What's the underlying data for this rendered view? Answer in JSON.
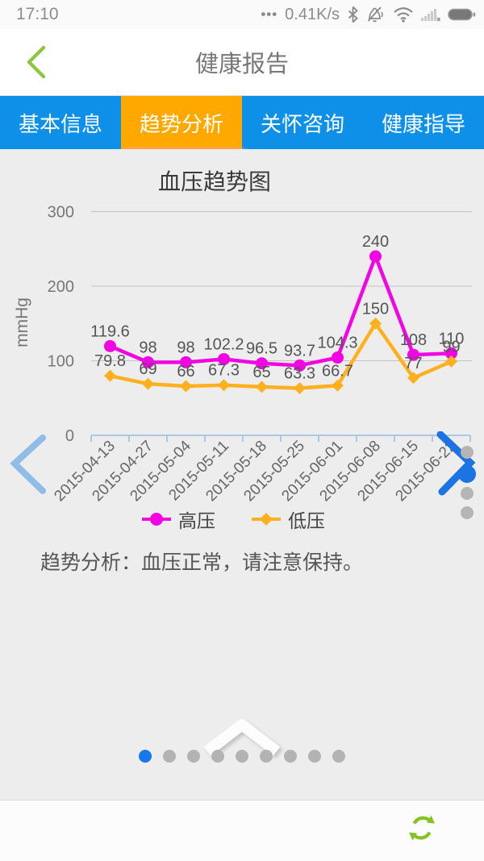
{
  "status_bar": {
    "time": "17:10",
    "menu_dots": "•••",
    "network_speed": "0.41K/s"
  },
  "header": {
    "title": "健康报告"
  },
  "tabs": {
    "items": [
      {
        "label": "基本信息"
      },
      {
        "label": "趋势分析"
      },
      {
        "label": "关怀咨询"
      },
      {
        "label": "健康指导"
      }
    ],
    "active_index": 1
  },
  "chart_data": {
    "type": "line",
    "title": "血压趋势图",
    "ylabel": "mmHg",
    "ylim": [
      0,
      300
    ],
    "y_ticks": [
      300,
      200,
      100,
      0
    ],
    "grid": true,
    "legend_position": "bottom",
    "categories": [
      "2015-04-13",
      "2015-04-27",
      "2015-05-04",
      "2015-05-11",
      "2015-05-18",
      "2015-05-25",
      "2015-06-01",
      "2015-06-08",
      "2015-06-15",
      "2015-06-22"
    ],
    "series": [
      {
        "name": "高压",
        "marker": "circle",
        "color": "#f105e3",
        "values": [
          119.6,
          98,
          98,
          102.2,
          96.5,
          93.7,
          104.3,
          240,
          108,
          110
        ]
      },
      {
        "name": "低压",
        "marker": "diamond",
        "color": "#ffb01e",
        "values": [
          79.8,
          69,
          66,
          67.3,
          65,
          63.3,
          66.7,
          150,
          77,
          99
        ]
      }
    ]
  },
  "analysis": {
    "text": "趋势分析：血压正常，请注意保持。"
  },
  "pagination": {
    "count": 9,
    "active_index": 0
  },
  "side_pagination": {
    "count": 4,
    "active_index": 1
  },
  "colors": {
    "tab_bar": "#0f90e8",
    "tab_active": "#ffa800",
    "tab_active_glow": "#f2a2e6",
    "accent_green": "#8dc63f",
    "series_high": "#f105e3",
    "series_low": "#ffb01e",
    "axis_line": "#a9c7e8",
    "pager_left": "#90bce8",
    "pager_right": "#1b74e2",
    "page_dot_active": "#1878e8"
  }
}
